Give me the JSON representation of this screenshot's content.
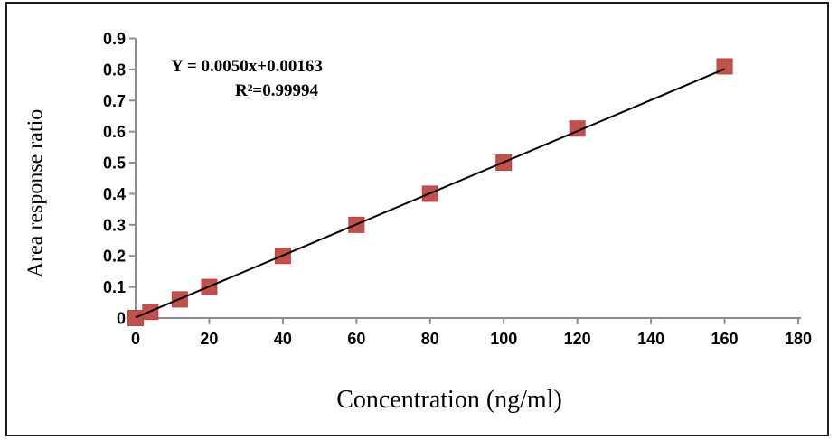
{
  "figure": {
    "background": "#ffffff",
    "border_color": "#1c1c1c"
  },
  "chart_data": {
    "type": "scatter",
    "title": "",
    "xlabel": "Concentration (ng/ml)",
    "ylabel": "Area response ratio",
    "annotation": {
      "line1": "Y = 0.0050x+0.00163",
      "line2": "R²=0.99994"
    },
    "series": [
      {
        "name": "calibration-points",
        "marker": "square",
        "marker_color": "#c2504c",
        "marker_edge_color": "#b4443f",
        "x": [
          0,
          4,
          12,
          20,
          40,
          60,
          80,
          100,
          120,
          160
        ],
        "y": [
          0,
          0.02,
          0.06,
          0.1,
          0.2,
          0.3,
          0.4,
          0.5,
          0.61,
          0.81
        ]
      }
    ],
    "trendline": {
      "slope": 0.005,
      "intercept": 0.00163,
      "x_start": 0,
      "x_end": 160,
      "color": "#000000"
    },
    "xlim": [
      0,
      180
    ],
    "ylim": [
      0,
      0.9
    ],
    "xticks": [
      0,
      20,
      40,
      60,
      80,
      100,
      120,
      140,
      160,
      180
    ],
    "ytick_labels": [
      "0",
      "0.1",
      "0.2",
      "0.3",
      "0.4",
      "0.5",
      "0.6",
      "0.7",
      "0.8",
      "0.9"
    ],
    "grid": false,
    "legend": "none",
    "axis_color": "#8c8c8c"
  }
}
